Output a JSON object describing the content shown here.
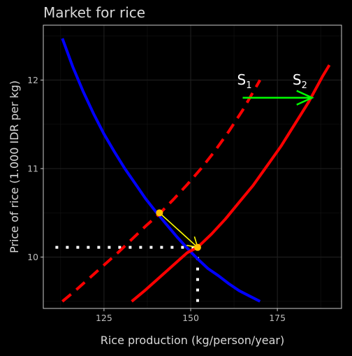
{
  "chart_data": {
    "type": "line",
    "title": "Market for rice",
    "xlabel": "Rice production (kg/person/year)",
    "ylabel": "Price of rice (1.000 IDR per kg)",
    "xlim": [
      107.5,
      193.5
    ],
    "ylim": [
      9.42,
      12.62
    ],
    "x_ticks": [
      125,
      150,
      175
    ],
    "y_ticks": [
      10,
      11,
      12
    ],
    "grid": true,
    "legend": "none",
    "background": "#000000",
    "colors": {
      "demand": "#0000ff",
      "supply": "#ff0000",
      "guides": "#ffffff",
      "arrow": "#00ff00",
      "equilibrium": "#ffc000",
      "transition": "#ffff00",
      "grid": "#1f1f1f",
      "text": "#d9d9d9"
    },
    "series": [
      {
        "style": "solid",
        "color": "#0000ff",
        "x": [
          113,
          116,
          119,
          122,
          125,
          128,
          131,
          134,
          137,
          140,
          143,
          146,
          149,
          152,
          155,
          158,
          161,
          164,
          167,
          170
        ],
        "y": [
          12.47,
          12.15,
          11.87,
          11.62,
          11.39,
          11.19,
          11.0,
          10.83,
          10.66,
          10.51,
          10.37,
          10.23,
          10.1,
          9.98,
          9.87,
          9.79,
          9.7,
          9.62,
          9.56,
          9.5
        ]
      },
      {
        "style": "dashed",
        "color": "#ff0000",
        "x": [
          113,
          117,
          121,
          125,
          129,
          133,
          137,
          141,
          145,
          149,
          153,
          157,
          161,
          165,
          170
        ],
        "y": [
          9.5,
          9.63,
          9.77,
          9.91,
          10.05,
          10.2,
          10.35,
          10.49,
          10.65,
          10.82,
          11.0,
          11.2,
          11.42,
          11.66,
          12.0
        ]
      },
      {
        "style": "solid",
        "color": "#ff0000",
        "x": [
          133,
          137,
          141,
          145,
          149,
          152,
          156,
          160,
          164,
          168,
          172,
          176,
          180,
          184,
          188,
          190
        ],
        "y": [
          9.5,
          9.63,
          9.77,
          9.91,
          10.05,
          10.11,
          10.26,
          10.43,
          10.62,
          10.81,
          11.03,
          11.25,
          11.5,
          11.75,
          12.04,
          12.17
        ]
      }
    ],
    "equilibria": [
      {
        "x": 141,
        "y": 10.5
      },
      {
        "x": 152,
        "y": 10.11
      }
    ],
    "guide_lines": {
      "horizontal": {
        "y": 10.11,
        "x_from": 111,
        "x_to": 152
      },
      "vertical": {
        "x": 152,
        "y_from": 9.42,
        "y_to": 10.11
      }
    },
    "shift_arrow": {
      "x_from": 165,
      "x_to": 185,
      "y": 11.8
    },
    "annotations": [
      {
        "text": "S",
        "subscript": "1",
        "x": 165.5,
        "y": 11.95
      },
      {
        "text": "S",
        "subscript": "2",
        "x": 181.5,
        "y": 11.95
      }
    ]
  }
}
